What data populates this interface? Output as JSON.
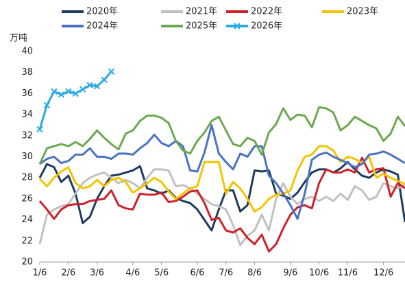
{
  "chart_data": {
    "type": "line",
    "y_label": "万吨",
    "categories": [
      "1/6",
      null,
      null,
      null,
      "2/6",
      null,
      null,
      null,
      "3/6",
      null,
      null,
      null,
      null,
      "4/6",
      null,
      null,
      null,
      "5/6",
      null,
      null,
      null,
      null,
      "6/6",
      null,
      null,
      null,
      "7/6",
      null,
      null,
      null,
      "8/6",
      null,
      null,
      null,
      null,
      "9/6",
      null,
      null,
      null,
      "10/6",
      null,
      null,
      null,
      "11/6",
      null,
      null,
      null,
      null,
      "12/6",
      null,
      null,
      null
    ],
    "series": [
      {
        "name": "2020年",
        "color": "#1f3a5f",
        "values": [
          28,
          29.3,
          29,
          27.6,
          28.2,
          26.5,
          23.7,
          24.3,
          26,
          27.2,
          28.2,
          28.3,
          28.5,
          28.7,
          29.1,
          27,
          26.8,
          26.5,
          26.8,
          26.1,
          25.8,
          25.6,
          25,
          24,
          23,
          25,
          26.8,
          26.8,
          24.8,
          25.4,
          28.7,
          28.6,
          28.7,
          26.5,
          26.3,
          26,
          26.6,
          27.6,
          28.5,
          28.8,
          28.8,
          28.5,
          28.9,
          29.5,
          28.8,
          28.2,
          28,
          28.5,
          28.8,
          28.6,
          28.3,
          23.8
        ]
      },
      {
        "name": "2021年",
        "color": "#c0c0c0",
        "values": [
          21.7,
          24.5,
          25,
          25.3,
          25.5,
          26.5,
          27.5,
          28,
          28.3,
          28.5,
          28,
          27.5,
          27.8,
          27.5,
          27,
          28,
          28.8,
          28.8,
          28.7,
          27.2,
          27.3,
          27,
          26.5,
          26,
          25.5,
          25.3,
          25,
          23.5,
          21.6,
          22.5,
          23,
          24.5,
          23,
          26,
          27.5,
          26.2,
          25.5,
          26,
          26.2,
          25.8,
          26.2,
          25.8,
          26.5,
          25.9,
          27.2,
          26.8,
          25.9,
          26.2,
          27.5,
          27.2,
          27,
          27.3
        ]
      },
      {
        "name": "2022年",
        "color": "#d0202a",
        "values": [
          25.8,
          25,
          24.1,
          25,
          25.4,
          25.5,
          25.5,
          25.8,
          25.9,
          26,
          26.8,
          25.4,
          25.1,
          25,
          26.5,
          26.4,
          26.4,
          26.6,
          25.7,
          25.8,
          26.2,
          26.7,
          26.8,
          25.6,
          24,
          24.2,
          23,
          22.8,
          23.2,
          22.3,
          21.7,
          22.6,
          21,
          21.7,
          23.2,
          24.5,
          25.2,
          25.4,
          25.1,
          27.5,
          28.8,
          28.5,
          28.5,
          28.8,
          28.5,
          29.9,
          28.5,
          28.8,
          28.9,
          26.2,
          27.5,
          27
        ]
      },
      {
        "name": "2023年",
        "color": "#f5c400",
        "values": [
          27.9,
          27.2,
          28,
          28.6,
          29,
          27.5,
          27,
          27.2,
          27.8,
          27.2,
          27.8,
          28,
          27.6,
          26.6,
          27,
          27.5,
          28,
          27.6,
          26.7,
          26,
          26.5,
          27,
          27.2,
          29.5,
          29.5,
          29.5,
          26.5,
          27.6,
          27,
          26,
          24.8,
          25.2,
          26,
          26.4,
          26.5,
          26.8,
          28.7,
          30,
          30.2,
          31,
          31,
          30.6,
          29.5,
          30,
          29.8,
          29.4,
          30,
          28,
          28.4,
          28,
          27.7,
          27.4
        ]
      },
      {
        "name": "2024年",
        "color": "#4a72c4",
        "values": [
          29.3,
          29.8,
          30,
          29.4,
          29.6,
          30.2,
          30.2,
          30.8,
          30,
          30,
          29.8,
          30.3,
          30.3,
          30.2,
          30.8,
          31.3,
          32.1,
          31.3,
          31,
          31.5,
          31,
          28.7,
          28.6,
          30.4,
          33,
          30.3,
          29.5,
          28.8,
          30.3,
          30,
          31,
          31,
          28.2,
          27.5,
          26.5,
          25.4,
          24.1,
          26.5,
          29.7,
          30.2,
          30.4,
          30,
          29.7,
          29.4,
          29,
          29.3,
          30.2,
          30.3,
          30.5,
          30.2,
          29.8,
          29.4
        ]
      },
      {
        "name": "2025年",
        "color": "#6aa84f",
        "values": [
          29.3,
          30.8,
          31,
          31.2,
          31,
          31.4,
          31,
          31.7,
          32.5,
          31.8,
          31.2,
          30.7,
          32.2,
          32.5,
          33.4,
          33.9,
          33.9,
          33.7,
          33.2,
          31.5,
          30.6,
          30.3,
          31.5,
          32.3,
          33.4,
          33.8,
          32.5,
          31.2,
          31,
          31.8,
          31.5,
          30.2,
          32.3,
          33.1,
          34.6,
          33.5,
          34,
          33.9,
          32.8,
          34.7,
          34.6,
          34.2,
          32.5,
          33,
          33.8,
          33.4,
          33,
          32.7,
          31.5,
          32.2,
          33.8,
          32.9
        ]
      },
      {
        "name": "2026年",
        "color": "#2aaae6",
        "marker": "x",
        "values": [
          32.6,
          34.9,
          36.2,
          35.9,
          36.2,
          36,
          36.4,
          36.8,
          36.7,
          37.3,
          38.1,
          null,
          null,
          null,
          null,
          null,
          null,
          null,
          null,
          null,
          null,
          null,
          null,
          null,
          null,
          null,
          null,
          null,
          null,
          null,
          null,
          null,
          null,
          null,
          null,
          null,
          null,
          null,
          null,
          null,
          null,
          null,
          null,
          null,
          null,
          null,
          null,
          null,
          null,
          null,
          null,
          null
        ]
      }
    ],
    "ylim": [
      20,
      40
    ],
    "yticks": [
      20,
      22,
      24,
      26,
      28,
      30,
      32,
      34,
      36,
      38,
      40
    ],
    "grid": false
  }
}
